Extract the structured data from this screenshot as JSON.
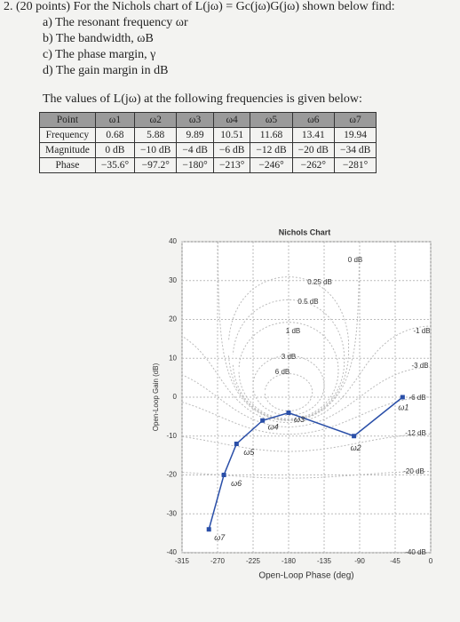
{
  "problem": {
    "number": "2.",
    "points": "(20 points)",
    "text": "For the Nichols chart of L(jω) = Gc(jω)G(jω) shown below find:",
    "items": [
      "a) The resonant frequency ωr",
      "b) The bandwidth, ωB",
      "c) The phase margin, γ",
      "d) The gain margin in dB"
    ]
  },
  "table": {
    "caption": "The values of L(jω) at the following frequencies is given below:",
    "header": [
      "Point",
      "ω1",
      "ω2",
      "ω3",
      "ω4",
      "ω5",
      "ω6",
      "ω7"
    ],
    "rows": [
      [
        "Frequency",
        "0.68",
        "5.88",
        "9.89",
        "10.51",
        "11.68",
        "13.41",
        "19.94"
      ],
      [
        "Magnitude",
        "0 dB",
        "−10 dB",
        "−4 dB",
        "−6 dB",
        "−12 dB",
        "−20 dB",
        "−34 dB"
      ],
      [
        "Phase",
        "−35.6°",
        "−97.2°",
        "−180°",
        "−213°",
        "−246°",
        "−262°",
        "−281°"
      ]
    ]
  },
  "chart_data": {
    "type": "nichols",
    "title": "Nichols Chart",
    "xlabel": "Open-Loop Phase (deg)",
    "ylabel": "Open-Loop Gain (dB)",
    "xlim": [
      -315,
      0
    ],
    "ylim": [
      -40,
      40
    ],
    "xticks": [
      -315,
      -270,
      -225,
      -180,
      -135,
      -90,
      -45,
      0
    ],
    "yticks": [
      -40,
      -30,
      -20,
      -10,
      0,
      10,
      20,
      30,
      40
    ],
    "grid": true,
    "contours": [
      {
        "value": 0,
        "label": "0 dB"
      },
      {
        "value": 0.25,
        "label": "0.25 dB"
      },
      {
        "value": 0.5,
        "label": "0.5 dB"
      },
      {
        "value": 1,
        "label": "1 dB"
      },
      {
        "value": 3,
        "label": "3 dB"
      },
      {
        "value": 6,
        "label": "6 dB"
      },
      {
        "value": -1,
        "label": "-1 dB"
      },
      {
        "value": -3,
        "label": "-3 dB"
      },
      {
        "value": -6,
        "label": "-6 dB"
      },
      {
        "value": -12,
        "label": "-12 dB"
      },
      {
        "value": -20,
        "label": "-20 dB"
      },
      {
        "value": -40,
        "label": "-40 dB"
      }
    ],
    "series": [
      {
        "name": "L(jω)",
        "color": "#2a4fa8",
        "x": [
          -35.6,
          -97.2,
          -180,
          -213,
          -246,
          -262,
          -281
        ],
        "values": [
          0,
          -10,
          -4,
          -6,
          -12,
          -20,
          -34
        ],
        "point_labels": [
          "ω1",
          "ω2",
          "ω3",
          "ω4",
          "ω5",
          "ω6",
          "ω7"
        ]
      }
    ]
  }
}
